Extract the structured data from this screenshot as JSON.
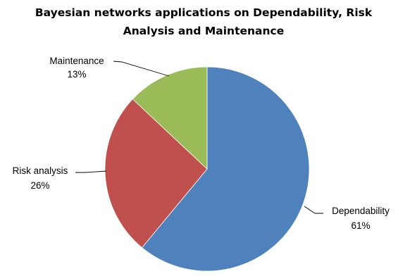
{
  "chart_data": {
    "type": "pie",
    "title": "Bayesian networks applications on Dependability, Risk Analysis and Maintenance",
    "title_lines": [
      "Bayesian networks applications on Dependability, Risk",
      "Analysis and Maintenance"
    ],
    "start_angle_deg": 0,
    "direction": "clockwise",
    "legend": "none",
    "slices": [
      {
        "label": "Dependability",
        "value": 61,
        "value_label": "61%",
        "color": "#4F81BD"
      },
      {
        "label": "Risk analysis",
        "value": 26,
        "value_label": "26%",
        "color": "#C0504D"
      },
      {
        "label": "Maintenance",
        "value": 13,
        "value_label": "13%",
        "color": "#9BBB59"
      }
    ]
  }
}
